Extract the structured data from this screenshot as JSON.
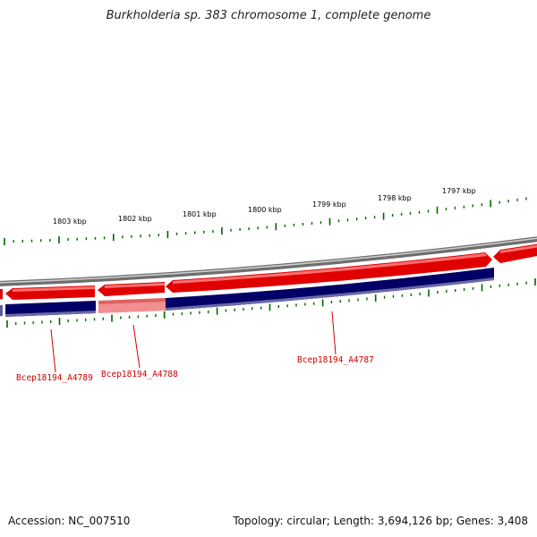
{
  "title": "Burkholderia sp. 383 chromosome 1, complete genome",
  "footer": {
    "accession": "Accession: NC_007510",
    "summary": "Topology: circular; Length: 3,694,126 bp; Genes: 3,408"
  },
  "colors": {
    "backbone": "#808080",
    "forward_strand": "#e00000",
    "forward_strand_highlight": "#f09090",
    "reverse_strand": "#000066",
    "tick": "#006600",
    "gene_label": "#cc0000"
  },
  "scale": {
    "unit": "kbp",
    "labels": [
      "1803 kbp",
      "1802 kbp",
      "1801 kbp",
      "1800 kbp",
      "1799 kbp",
      "1798 kbp",
      "1797 kbp"
    ]
  },
  "genes": [
    {
      "id": "Bcep18194_A4789",
      "label": "Bcep18194_A4789"
    },
    {
      "id": "Bcep18194_A4788",
      "label": "Bcep18194_A4788"
    },
    {
      "id": "Bcep18194_A4787",
      "label": "Bcep18194_A4787"
    }
  ]
}
